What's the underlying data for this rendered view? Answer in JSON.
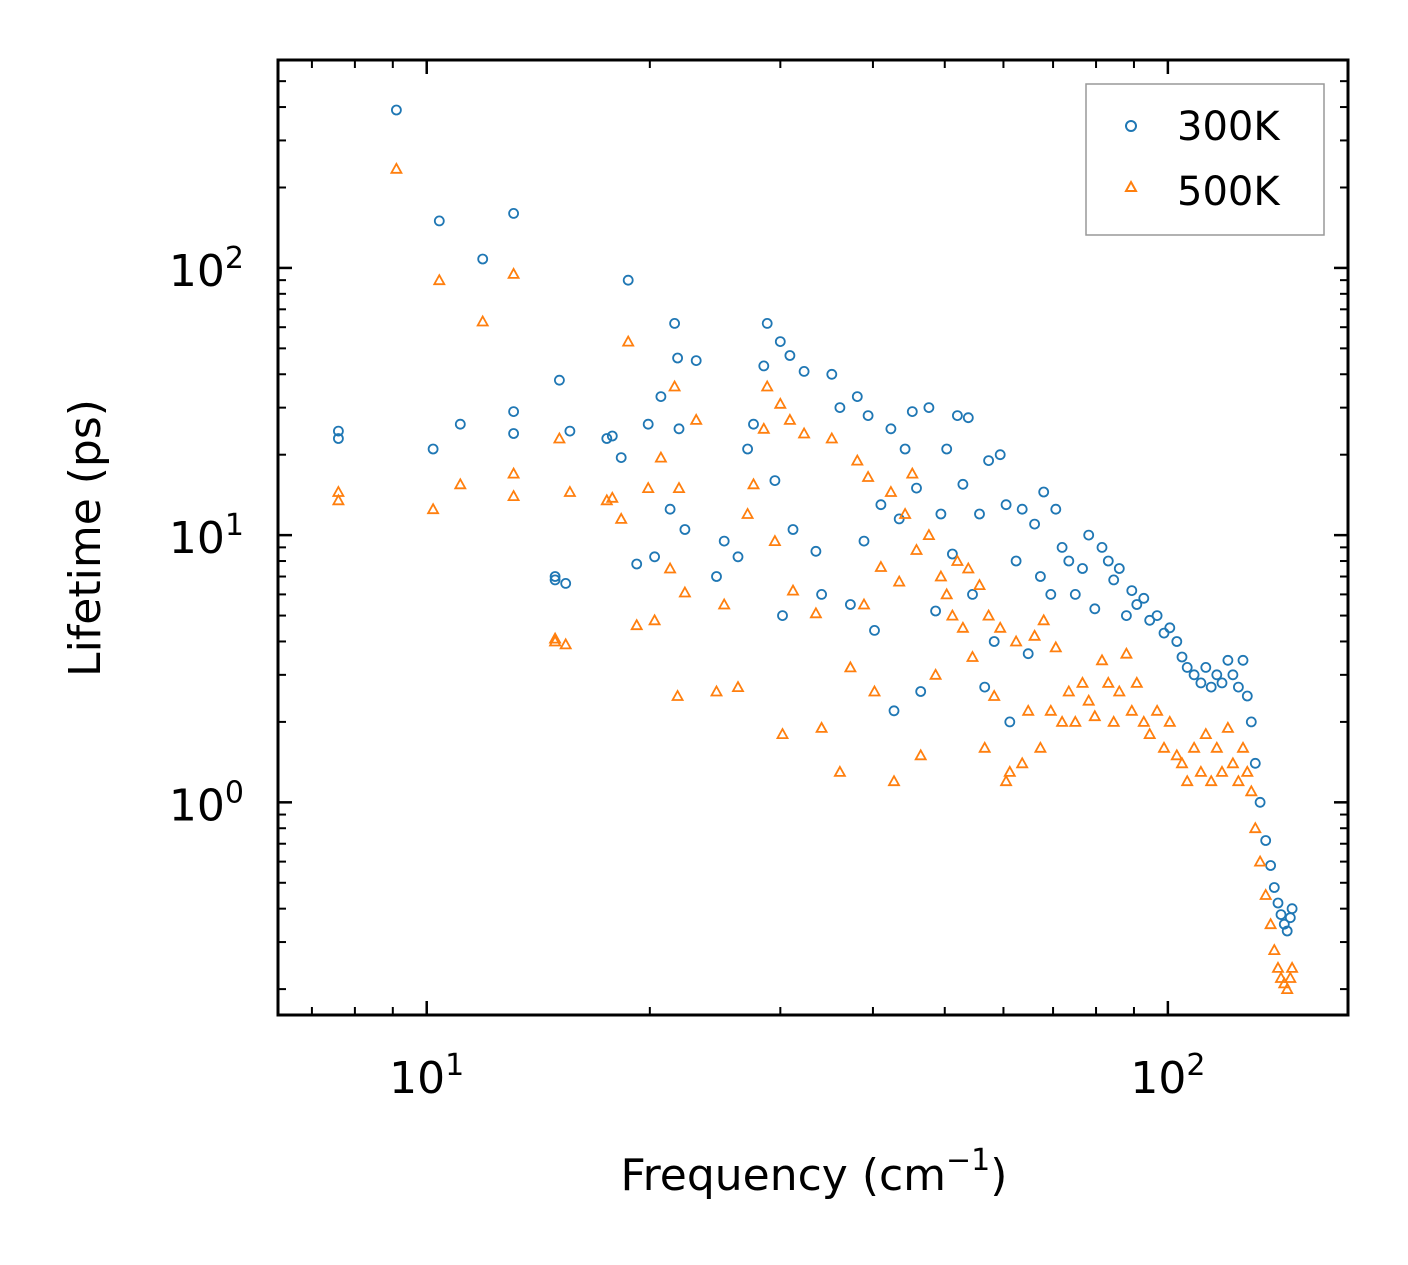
{
  "chart_data": {
    "type": "scatter",
    "xscale": "log",
    "yscale": "log",
    "xlabel": "Frequency (cm",
    "xlabel_sup": "−1",
    "xlabel_close": ")",
    "ylabel": "Lifetime (ps)",
    "xlim": [
      6.3,
      175
    ],
    "ylim": [
      0.16,
      600
    ],
    "x_ticks": [
      {
        "base": "10",
        "exp": "1",
        "value": 10
      },
      {
        "base": "10",
        "exp": "2",
        "value": 100
      }
    ],
    "y_ticks": [
      {
        "base": "10",
        "exp": "0",
        "value": 1
      },
      {
        "base": "10",
        "exp": "1",
        "value": 10
      },
      {
        "base": "10",
        "exp": "2",
        "value": 100
      }
    ],
    "legend_position": "top-right",
    "series": [
      {
        "name": "300K",
        "marker": "circle",
        "color": "#1f77b4",
        "points": [
          [
            7.6,
            24.5
          ],
          [
            7.6,
            23.0
          ],
          [
            9.1,
            390
          ],
          [
            10.2,
            21.0
          ],
          [
            10.4,
            150
          ],
          [
            11.1,
            26.0
          ],
          [
            11.9,
            108
          ],
          [
            13.1,
            160
          ],
          [
            13.1,
            29.0
          ],
          [
            13.1,
            24.0
          ],
          [
            14.9,
            7.0
          ],
          [
            14.9,
            6.8
          ],
          [
            15.1,
            38.0
          ],
          [
            15.4,
            6.6
          ],
          [
            15.6,
            24.5
          ],
          [
            17.5,
            23.0
          ],
          [
            17.8,
            23.5
          ],
          [
            18.3,
            19.5
          ],
          [
            18.7,
            90
          ],
          [
            19.2,
            7.8
          ],
          [
            19.9,
            26.0
          ],
          [
            20.3,
            8.3
          ],
          [
            20.7,
            33.0
          ],
          [
            21.3,
            12.5
          ],
          [
            21.6,
            62
          ],
          [
            21.8,
            46
          ],
          [
            21.9,
            25.0
          ],
          [
            22.3,
            10.5
          ],
          [
            23.1,
            45
          ],
          [
            24.6,
            7.0
          ],
          [
            25.2,
            9.5
          ],
          [
            26.3,
            8.3
          ],
          [
            27.1,
            21.0
          ],
          [
            27.6,
            26.0
          ],
          [
            28.5,
            43
          ],
          [
            28.8,
            62
          ],
          [
            29.5,
            16.0
          ],
          [
            30.0,
            53
          ],
          [
            30.2,
            5.0
          ],
          [
            30.9,
            47
          ],
          [
            31.2,
            10.5
          ],
          [
            32.3,
            41
          ],
          [
            33.5,
            8.7
          ],
          [
            34.1,
            6.0
          ],
          [
            35.2,
            40
          ],
          [
            36.1,
            30.0
          ],
          [
            37.3,
            5.5
          ],
          [
            38.1,
            33.0
          ],
          [
            38.9,
            9.5
          ],
          [
            39.4,
            28.0
          ],
          [
            40.2,
            4.4
          ],
          [
            41.0,
            13.0
          ],
          [
            42.3,
            25.0
          ],
          [
            42.7,
            2.2
          ],
          [
            43.4,
            11.5
          ],
          [
            44.2,
            21.0
          ],
          [
            45.2,
            29.0
          ],
          [
            45.8,
            15.0
          ],
          [
            46.4,
            2.6
          ],
          [
            47.6,
            30.0
          ],
          [
            48.6,
            5.2
          ],
          [
            49.4,
            12.0
          ],
          [
            50.3,
            21.0
          ],
          [
            51.2,
            8.5
          ],
          [
            52.0,
            28.0
          ],
          [
            52.9,
            15.5
          ],
          [
            53.8,
            27.5
          ],
          [
            54.5,
            6.0
          ],
          [
            55.7,
            12.0
          ],
          [
            56.6,
            2.7
          ],
          [
            57.3,
            19.0
          ],
          [
            58.3,
            4.0
          ],
          [
            59.4,
            20.0
          ],
          [
            60.5,
            13.0
          ],
          [
            61.2,
            2.0
          ],
          [
            62.4,
            8.0
          ],
          [
            63.6,
            12.5
          ],
          [
            64.8,
            3.6
          ],
          [
            66.1,
            11.0
          ],
          [
            67.3,
            7.0
          ],
          [
            68.0,
            14.5
          ],
          [
            69.5,
            6.0
          ],
          [
            70.6,
            12.5
          ],
          [
            72.0,
            9.0
          ],
          [
            73.5,
            8.0
          ],
          [
            75.0,
            6.0
          ],
          [
            76.7,
            7.5
          ],
          [
            78.2,
            10.0
          ],
          [
            79.7,
            5.3
          ],
          [
            81.5,
            9.0
          ],
          [
            83.1,
            8.0
          ],
          [
            84.5,
            6.8
          ],
          [
            86.0,
            7.5
          ],
          [
            87.9,
            5.0
          ],
          [
            89.4,
            6.2
          ],
          [
            90.8,
            5.5
          ],
          [
            92.8,
            5.8
          ],
          [
            94.5,
            4.8
          ],
          [
            96.7,
            5.0
          ],
          [
            98.8,
            4.3
          ],
          [
            100.6,
            4.5
          ],
          [
            102.8,
            4.0
          ],
          [
            104.5,
            3.5
          ],
          [
            106.2,
            3.2
          ],
          [
            108.5,
            3.0
          ],
          [
            110.8,
            2.8
          ],
          [
            112.5,
            3.2
          ],
          [
            114.4,
            2.7
          ],
          [
            116.4,
            3.0
          ],
          [
            118.3,
            2.8
          ],
          [
            120.5,
            3.4
          ],
          [
            122.4,
            3.0
          ],
          [
            124.5,
            2.7
          ],
          [
            126.3,
            3.4
          ],
          [
            128.0,
            2.5
          ],
          [
            129.6,
            2.0
          ],
          [
            131.2,
            1.4
          ],
          [
            133.2,
            1.0
          ],
          [
            135.5,
            0.72
          ],
          [
            137.6,
            0.58
          ],
          [
            139.2,
            0.48
          ],
          [
            140.8,
            0.42
          ],
          [
            142.1,
            0.38
          ],
          [
            143.6,
            0.35
          ],
          [
            144.9,
            0.33
          ],
          [
            146.3,
            0.37
          ],
          [
            147.1,
            0.4
          ]
        ]
      },
      {
        "name": "500K",
        "marker": "triangle",
        "color": "#ff7f0e",
        "points": [
          [
            7.6,
            14.5
          ],
          [
            7.6,
            13.5
          ],
          [
            9.1,
            235
          ],
          [
            10.2,
            12.5
          ],
          [
            10.4,
            90
          ],
          [
            11.1,
            15.5
          ],
          [
            11.9,
            63
          ],
          [
            13.1,
            95
          ],
          [
            13.1,
            17.0
          ],
          [
            13.1,
            14.0
          ],
          [
            14.9,
            4.1
          ],
          [
            14.9,
            4.0
          ],
          [
            15.1,
            23.0
          ],
          [
            15.4,
            3.9
          ],
          [
            15.6,
            14.5
          ],
          [
            17.5,
            13.5
          ],
          [
            17.8,
            13.8
          ],
          [
            18.3,
            11.5
          ],
          [
            18.7,
            53
          ],
          [
            19.2,
            4.6
          ],
          [
            19.9,
            15.0
          ],
          [
            20.3,
            4.8
          ],
          [
            20.7,
            19.5
          ],
          [
            21.3,
            7.5
          ],
          [
            21.6,
            36
          ],
          [
            21.8,
            2.5
          ],
          [
            21.9,
            15.0
          ],
          [
            22.3,
            6.1
          ],
          [
            23.1,
            27.0
          ],
          [
            24.6,
            2.6
          ],
          [
            25.2,
            5.5
          ],
          [
            26.3,
            2.7
          ],
          [
            27.1,
            12.0
          ],
          [
            27.6,
            15.5
          ],
          [
            28.5,
            25.0
          ],
          [
            28.8,
            36
          ],
          [
            29.5,
            9.5
          ],
          [
            30.0,
            31.0
          ],
          [
            30.2,
            1.8
          ],
          [
            30.9,
            27.0
          ],
          [
            31.2,
            6.2
          ],
          [
            32.3,
            24.0
          ],
          [
            33.5,
            5.1
          ],
          [
            34.1,
            1.9
          ],
          [
            35.2,
            23.0
          ],
          [
            36.1,
            1.3
          ],
          [
            37.3,
            3.2
          ],
          [
            38.1,
            19.0
          ],
          [
            38.9,
            5.5
          ],
          [
            39.4,
            16.5
          ],
          [
            40.2,
            2.6
          ],
          [
            41.0,
            7.6
          ],
          [
            42.3,
            14.5
          ],
          [
            42.7,
            1.2
          ],
          [
            43.4,
            6.7
          ],
          [
            44.2,
            12.0
          ],
          [
            45.2,
            17.0
          ],
          [
            45.8,
            8.8
          ],
          [
            46.4,
            1.5
          ],
          [
            47.6,
            10.0
          ],
          [
            48.6,
            3.0
          ],
          [
            49.4,
            7.0
          ],
          [
            50.3,
            6.0
          ],
          [
            51.2,
            5.0
          ],
          [
            52.0,
            8.0
          ],
          [
            52.9,
            4.5
          ],
          [
            53.8,
            7.5
          ],
          [
            54.5,
            3.5
          ],
          [
            55.7,
            6.5
          ],
          [
            56.6,
            1.6
          ],
          [
            57.3,
            5.0
          ],
          [
            58.3,
            2.5
          ],
          [
            59.4,
            4.5
          ],
          [
            60.5,
            1.2
          ],
          [
            61.2,
            1.3
          ],
          [
            62.4,
            4.0
          ],
          [
            63.6,
            1.4
          ],
          [
            64.8,
            2.2
          ],
          [
            66.1,
            4.2
          ],
          [
            67.3,
            1.6
          ],
          [
            68.0,
            4.8
          ],
          [
            69.5,
            2.2
          ],
          [
            70.6,
            3.8
          ],
          [
            72.0,
            2.0
          ],
          [
            73.5,
            2.6
          ],
          [
            75.0,
            2.0
          ],
          [
            76.7,
            2.8
          ],
          [
            78.2,
            2.4
          ],
          [
            79.7,
            2.1
          ],
          [
            81.5,
            3.4
          ],
          [
            83.1,
            2.8
          ],
          [
            84.5,
            2.0
          ],
          [
            86.0,
            2.6
          ],
          [
            87.9,
            3.6
          ],
          [
            89.4,
            2.2
          ],
          [
            90.8,
            2.8
          ],
          [
            92.8,
            2.0
          ],
          [
            94.5,
            1.8
          ],
          [
            96.7,
            2.2
          ],
          [
            98.8,
            1.6
          ],
          [
            100.6,
            2.0
          ],
          [
            102.8,
            1.5
          ],
          [
            104.5,
            1.4
          ],
          [
            106.2,
            1.2
          ],
          [
            108.5,
            1.6
          ],
          [
            110.8,
            1.3
          ],
          [
            112.5,
            1.8
          ],
          [
            114.4,
            1.2
          ],
          [
            116.4,
            1.6
          ],
          [
            118.3,
            1.3
          ],
          [
            120.5,
            1.9
          ],
          [
            122.4,
            1.4
          ],
          [
            124.5,
            1.2
          ],
          [
            126.3,
            1.6
          ],
          [
            128.0,
            1.3
          ],
          [
            129.6,
            1.1
          ],
          [
            131.2,
            0.8
          ],
          [
            133.2,
            0.6
          ],
          [
            135.5,
            0.45
          ],
          [
            137.6,
            0.35
          ],
          [
            139.2,
            0.28
          ],
          [
            140.8,
            0.24
          ],
          [
            142.1,
            0.22
          ],
          [
            143.6,
            0.21
          ],
          [
            144.9,
            0.2
          ],
          [
            146.3,
            0.22
          ],
          [
            147.1,
            0.24
          ]
        ]
      }
    ]
  }
}
